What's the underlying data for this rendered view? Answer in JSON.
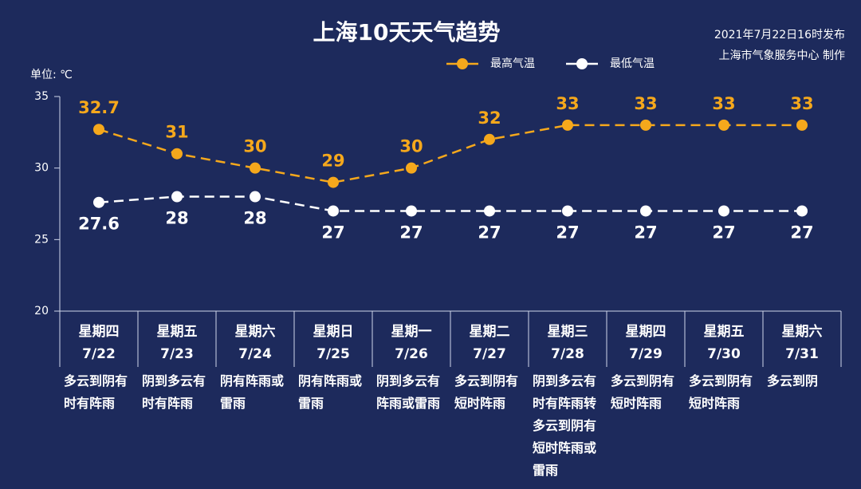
{
  "chart_data": {
    "type": "line",
    "title": "上海10天天气趋势",
    "publish_time": "2021年7月22日16时发布",
    "publisher": "上海市气象服务中心 制作",
    "unit_label": "单位: ℃",
    "weekdays": [
      "星期四",
      "星期五",
      "星期六",
      "星期日",
      "星期一",
      "星期二",
      "星期三",
      "星期四",
      "星期五",
      "星期六"
    ],
    "categories": [
      "7/22",
      "7/23",
      "7/24",
      "7/25",
      "7/26",
      "7/27",
      "7/28",
      "7/29",
      "7/30",
      "7/31"
    ],
    "descriptions": [
      "多云到阴有时有阵雨",
      "阴到多云有时有阵雨",
      "阴有阵雨或雷雨",
      "阴有阵雨或雷雨",
      "阴到多云有阵雨或雷雨",
      "多云到阴有短时阵雨",
      "阴到多云有时有阵雨转多云到阴有短时阵雨或雷雨",
      "多云到阴有短时阵雨",
      "多云到阴有短时阵雨",
      "多云到阴"
    ],
    "series": [
      {
        "name": "最高气温",
        "color": "#f5a81c",
        "values": [
          32.7,
          31,
          30,
          29,
          30,
          32,
          33,
          33,
          33,
          33
        ]
      },
      {
        "name": "最低气温",
        "color": "#ffffff",
        "values": [
          27.6,
          28,
          28,
          27,
          27,
          27,
          27,
          27,
          27,
          27
        ]
      }
    ],
    "ylim": [
      20,
      35
    ],
    "yticks": [
      20,
      25,
      30,
      35
    ],
    "grid": false
  }
}
